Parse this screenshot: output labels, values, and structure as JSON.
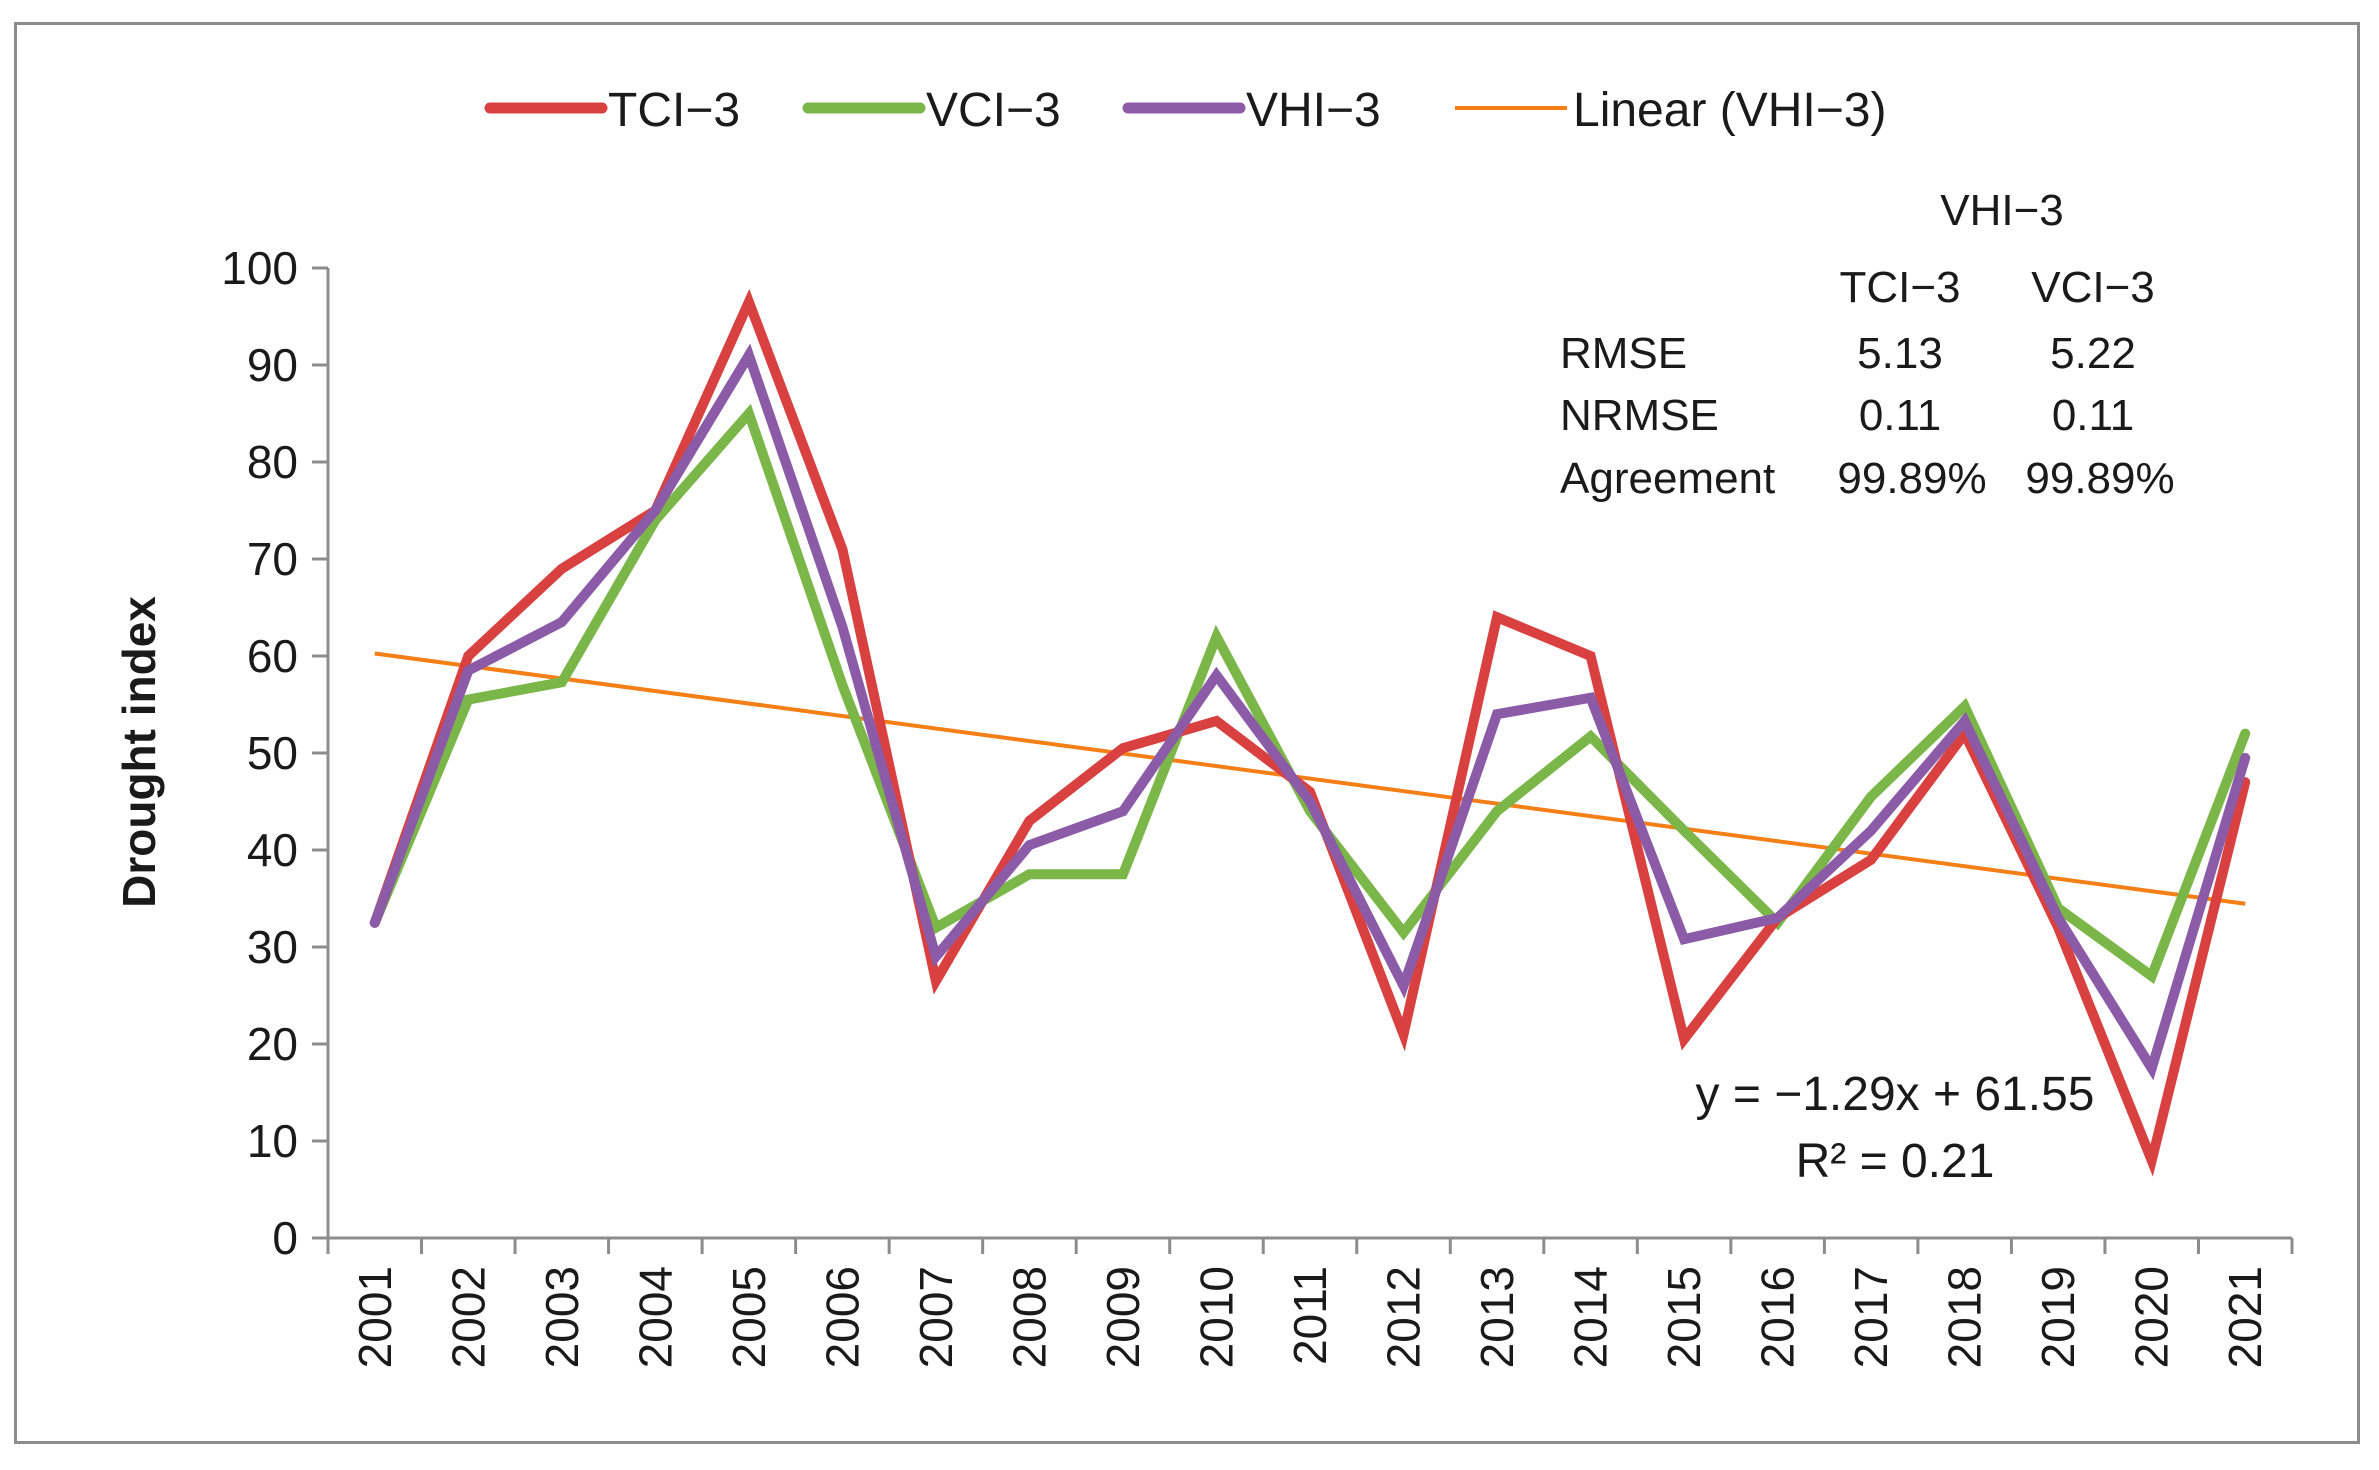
{
  "chart_data": {
    "type": "line",
    "title": "",
    "xlabel": "",
    "ylabel": "Drought index",
    "ylim": [
      0,
      100
    ],
    "yticks": [
      0,
      10,
      20,
      30,
      40,
      50,
      60,
      70,
      80,
      90,
      100
    ],
    "categories": [
      "2001",
      "2002",
      "2003",
      "2004",
      "2005",
      "2006",
      "2007",
      "2008",
      "2009",
      "2010",
      "2011",
      "2012",
      "2013",
      "2014",
      "2015",
      "2016",
      "2017",
      "2018",
      "2019",
      "2020",
      "2021"
    ],
    "series": [
      {
        "name": "TCI−3",
        "color": "#d94040",
        "values": [
          32.5,
          60,
          69,
          75,
          96.5,
          71,
          26.5,
          43,
          50.5,
          53.3,
          46,
          21,
          64,
          60,
          20.5,
          33,
          39,
          52,
          32,
          8,
          47
        ]
      },
      {
        "name": "VCI−3",
        "color": "#7ab648",
        "values": [
          32.5,
          55.5,
          57.3,
          74,
          85,
          57,
          32,
          37.5,
          37.5,
          62,
          44,
          31.5,
          44,
          51.7,
          42,
          32.5,
          45.5,
          54.8,
          34,
          27,
          52
        ]
      },
      {
        "name": "VHI−3",
        "color": "#8b5ba8",
        "values": [
          32.5,
          58.5,
          63.5,
          75,
          91,
          63,
          29,
          40.5,
          44,
          58,
          45,
          26,
          54,
          55.7,
          30.8,
          33,
          42,
          53.3,
          33,
          17.5,
          49.5
        ]
      }
    ],
    "trendline": {
      "name": "Linear (VHI−3)",
      "color": "#f57f17",
      "slope": -1.29,
      "intercept": 61.55,
      "equation": "y = −1.29x + 61.55",
      "r2_label": "R² = 0.21"
    },
    "legend_position": "top",
    "grid": false
  },
  "stats_table": {
    "group_header": "VHI−3",
    "columns": [
      "TCI−3",
      "VCI−3"
    ],
    "rows": [
      {
        "label": "RMSE",
        "values": [
          "5.13",
          "5.22"
        ]
      },
      {
        "label": "NRMSE",
        "values": [
          "0.11",
          "0.11"
        ]
      },
      {
        "label": "Agreement",
        "values": [
          "99.89%",
          "99.89%"
        ]
      }
    ]
  }
}
